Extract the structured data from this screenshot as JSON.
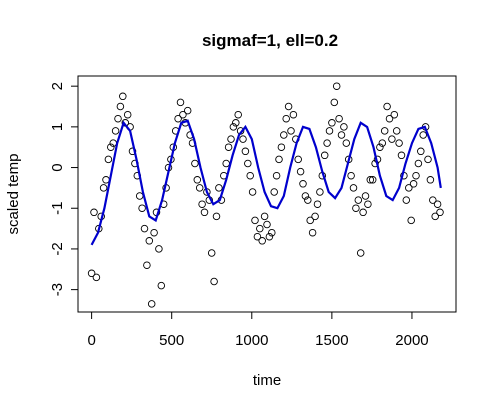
{
  "chart_data": {
    "type": "scatter",
    "title": "sigmaf=1, ell=0.2",
    "xlabel": "time",
    "ylabel": "scaled temp",
    "xlim": [
      -85,
      2275
    ],
    "ylim": [
      -3.55,
      2.25
    ],
    "xticks": [
      0,
      500,
      1000,
      1500,
      2000
    ],
    "yticks": [
      -3,
      -2,
      -1,
      0,
      1,
      2
    ],
    "grid": false,
    "legend": "none",
    "colors": {
      "points": "#000000",
      "fit_line": "#0000CD"
    },
    "series": [
      {
        "mark": "points",
        "x": [
          0,
          15,
          30,
          45,
          60,
          75,
          90,
          105,
          120,
          135,
          150,
          165,
          180,
          195,
          210,
          225,
          240,
          255,
          270,
          285,
          300,
          315,
          330,
          345,
          360,
          375,
          390,
          405,
          420,
          435,
          450,
          465,
          480,
          495,
          510,
          525,
          540,
          555,
          570,
          585,
          600,
          615,
          630,
          645,
          660,
          675,
          690,
          705,
          720,
          735,
          750,
          765,
          780,
          795,
          810,
          825,
          840,
          855,
          870,
          885,
          900,
          915,
          930,
          945,
          960,
          975,
          990,
          1005,
          1020,
          1035,
          1050,
          1065,
          1080,
          1095,
          1110,
          1125,
          1140,
          1155,
          1170,
          1185,
          1200,
          1215,
          1230,
          1245,
          1260,
          1275,
          1290,
          1305,
          1320,
          1335,
          1350,
          1365,
          1380,
          1395,
          1410,
          1425,
          1440,
          1455,
          1470,
          1485,
          1500,
          1515,
          1530,
          1545,
          1560,
          1575,
          1590,
          1605,
          1620,
          1635,
          1650,
          1665,
          1680,
          1695,
          1710,
          1725,
          1740,
          1755,
          1770,
          1785,
          1800,
          1815,
          1830,
          1845,
          1860,
          1875,
          1890,
          1905,
          1920,
          1935,
          1950,
          1965,
          1980,
          1995,
          2010,
          2025,
          2040,
          2055,
          2070,
          2085,
          2100,
          2115,
          2130,
          2145,
          2160,
          2175
        ],
        "y": [
          -2.6,
          -1.1,
          -2.7,
          -1.5,
          -1.2,
          -0.5,
          -0.3,
          0.2,
          0.5,
          0.6,
          0.9,
          1.2,
          1.5,
          1.75,
          1.1,
          1.3,
          1.0,
          0.4,
          0.1,
          -0.2,
          -0.7,
          -1.0,
          -1.5,
          -2.4,
          -1.8,
          -3.35,
          -1.6,
          -1.1,
          -2.0,
          -2.9,
          -0.9,
          -0.5,
          0.0,
          0.2,
          0.5,
          0.9,
          1.2,
          1.6,
          1.3,
          1.1,
          1.4,
          0.8,
          0.6,
          0.1,
          -0.3,
          -0.5,
          -0.9,
          -1.1,
          -0.6,
          -0.8,
          -2.1,
          -2.8,
          -1.2,
          -0.5,
          -0.8,
          -0.2,
          0.1,
          0.5,
          0.7,
          1.0,
          1.1,
          1.3,
          0.9,
          0.7,
          0.4,
          0.1,
          -0.2,
          -0.6,
          -1.3,
          -1.7,
          -1.5,
          -1.8,
          -1.2,
          -1.4,
          -1.7,
          -1.6,
          -0.6,
          -0.2,
          0.2,
          0.5,
          0.8,
          1.2,
          1.5,
          0.9,
          1.3,
          0.7,
          0.2,
          -0.1,
          -0.4,
          -0.7,
          -0.8,
          -1.3,
          -1.6,
          -1.2,
          -0.9,
          -0.6,
          -0.2,
          0.3,
          0.6,
          0.9,
          1.1,
          1.6,
          2.0,
          1.2,
          0.8,
          1.0,
          0.6,
          0.2,
          -0.2,
          -0.5,
          -1.0,
          -0.8,
          -2.1,
          -1.1,
          -0.7,
          -0.9,
          -0.3,
          -0.3,
          0.1,
          0.2,
          0.5,
          0.6,
          0.9,
          1.5,
          1.2,
          0.7,
          1.3,
          0.9,
          0.6,
          0.3,
          -0.2,
          -0.8,
          -0.5,
          -1.3,
          -0.4,
          -0.2,
          0.1,
          0.4,
          0.8,
          1.0,
          0.2,
          -0.3,
          -0.8,
          -1.2,
          -0.9,
          -1.1
        ]
      },
      {
        "mark": "line",
        "x": [
          0,
          40,
          80,
          120,
          160,
          200,
          240,
          280,
          320,
          360,
          400,
          440,
          480,
          520,
          560,
          600,
          640,
          680,
          720,
          760,
          800,
          840,
          880,
          920,
          960,
          1000,
          1040,
          1080,
          1120,
          1160,
          1200,
          1240,
          1280,
          1320,
          1360,
          1400,
          1440,
          1480,
          1520,
          1560,
          1600,
          1640,
          1680,
          1720,
          1760,
          1800,
          1840,
          1880,
          1920,
          1960,
          2000,
          2040,
          2080,
          2120,
          2160,
          2180
        ],
        "y": [
          -1.9,
          -1.6,
          -1.0,
          -0.2,
          0.6,
          1.1,
          0.9,
          0.2,
          -0.6,
          -1.2,
          -1.3,
          -0.8,
          -0.1,
          0.6,
          1.1,
          1.15,
          0.7,
          0.0,
          -0.6,
          -0.9,
          -0.8,
          -0.3,
          0.3,
          0.8,
          1.0,
          0.7,
          0.0,
          -0.6,
          -0.95,
          -1.0,
          -0.7,
          0.0,
          0.6,
          1.0,
          0.95,
          0.5,
          -0.1,
          -0.6,
          -0.75,
          -0.5,
          0.1,
          0.7,
          1.1,
          1.0,
          0.5,
          -0.2,
          -0.7,
          -0.8,
          -0.5,
          0.1,
          0.6,
          0.95,
          1.0,
          0.6,
          0.0,
          -0.5
        ]
      }
    ]
  }
}
